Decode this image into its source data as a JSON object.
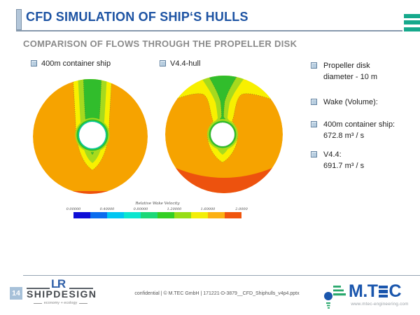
{
  "slide": {
    "title": "CFD SIMULATION OF SHIP‘S HULLS",
    "subtitle": "COMPARISON OF FLOWS THROUGH THE PROPELLER DISK",
    "page_number": "14"
  },
  "legend": {
    "left": "400m container ship",
    "right": "V4.4-hull"
  },
  "info_bullets": [
    {
      "line1": "Propeller disk",
      "line2": "diameter - 10 m"
    },
    {
      "line1": "Wake (Volume):",
      "line2": ""
    },
    {
      "line1": "400m container ship:",
      "line2": "672.8 m³ / s"
    },
    {
      "line1": "V4.4:",
      "line2": "691.7 m³ / s"
    }
  ],
  "colorbar": {
    "title": "Relative Wake Velocity",
    "tick_labels": [
      "0.00000",
      "0.40000",
      "0.80000",
      "1.20000",
      "1.60000",
      "2.0000"
    ],
    "segments": [
      "#0d0dd6",
      "#0a6cee",
      "#00c6f2",
      "#0ae6cf",
      "#1cd878",
      "#33cf23",
      "#97dd15",
      "#f3ee08",
      "#fcb012",
      "#f0540c"
    ]
  },
  "footer": {
    "confidential": "confidential  |  © M.TEC GmbH  |  171221-D-3879__CFD_Shiphulls_v4p4.pptx",
    "shipdesign_lr": "LR",
    "shipdesign_name": "SHIPDESIGN",
    "shipdesign_tagline": "economy + ecology",
    "mtec_brand_prefix": "M.T",
    "mtec_brand_suffix": "C",
    "mtec_url": "www.mtec-engineering.com"
  },
  "palette": {
    "disk_orange": "#f6a300",
    "disk_red": "#ed520e",
    "disk_yellow": "#f8f000",
    "disk_yellow_green": "#a6da1e",
    "disk_green": "#31bd2c",
    "disk_spring": "#00cfa0",
    "title_blue": "#1d53a3",
    "subtitle_gray": "#8a8a8a",
    "accent_green": "#16a98c",
    "footer_blue": "#1a56ad"
  }
}
